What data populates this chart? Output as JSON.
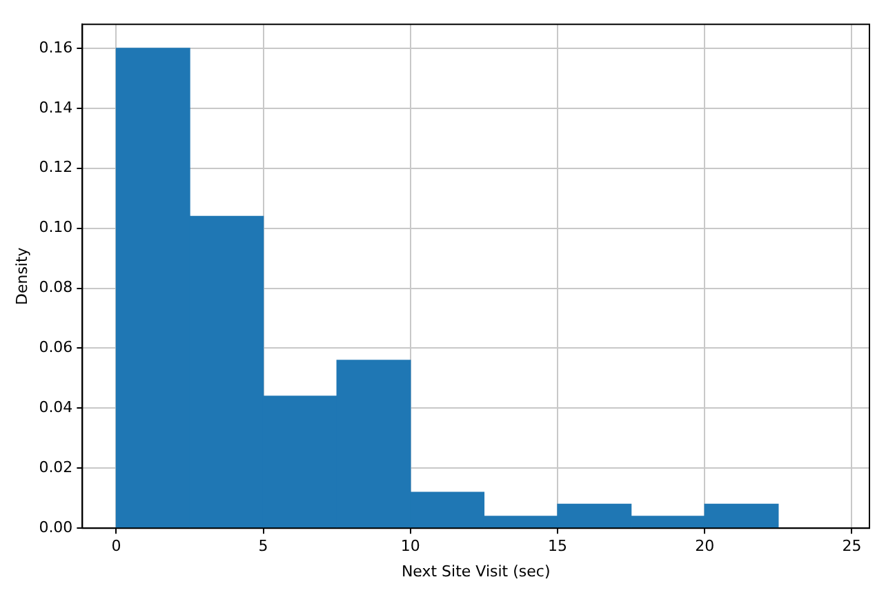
{
  "chart_data": {
    "type": "histogram",
    "xlabel": "Next Site Visit (sec)",
    "ylabel": "Density",
    "bins": [
      0,
      2.5,
      5,
      7.5,
      10,
      12.5,
      15,
      17.5,
      20,
      22.5
    ],
    "values": [
      0.16,
      0.104,
      0.044,
      0.056,
      0.012,
      0.004,
      0.008,
      0.004,
      0.008
    ],
    "color": "#1f77b4",
    "xlim": [
      -1.15,
      25.6
    ],
    "xticks": [
      0,
      5,
      10,
      15,
      20,
      25
    ],
    "ylim": [
      0,
      0.168
    ],
    "yticks": [
      {
        "value": 0,
        "label": "0.00"
      },
      {
        "value": 0.02,
        "label": "0.02"
      },
      {
        "value": 0.04,
        "label": "0.04"
      },
      {
        "value": 0.06,
        "label": "0.06"
      },
      {
        "value": 0.08,
        "label": "0.08"
      },
      {
        "value": 0.1,
        "label": "0.10"
      },
      {
        "value": 0.12,
        "label": "0.12"
      },
      {
        "value": 0.14,
        "label": "0.14"
      },
      {
        "value": 0.16,
        "label": "0.16"
      }
    ],
    "grid": true
  }
}
